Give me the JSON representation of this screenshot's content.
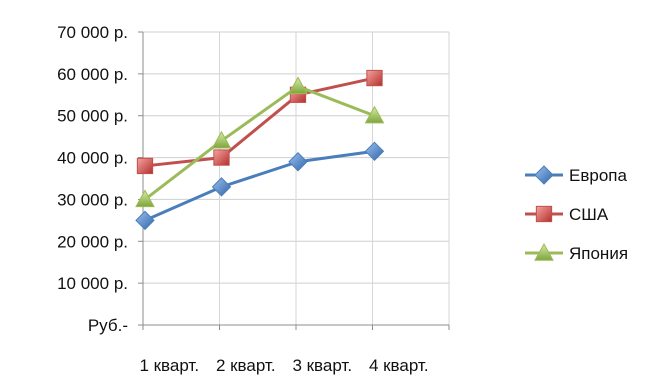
{
  "chart_data": {
    "type": "line",
    "title": "",
    "xlabel": "",
    "ylabel": "",
    "categories": [
      "1 кварт.",
      "2 кварт.",
      "3 кварт.",
      "4 кварт."
    ],
    "ylim": [
      0,
      70000
    ],
    "y_ticks": [
      0,
      10000,
      20000,
      30000,
      40000,
      50000,
      60000,
      70000
    ],
    "y_tick_labels": [
      "Руб.-",
      "10 000 р.",
      "20 000 р.",
      "30 000 р.",
      "40 000 р.",
      "50 000 р.",
      "60 000 р.",
      "70 000 р."
    ],
    "grid": true,
    "legend_position": "right",
    "series": [
      {
        "name": "Европа",
        "values": [
          25000,
          33000,
          39000,
          41500
        ],
        "color": "#4a7ebb",
        "marker": "diamond"
      },
      {
        "name": "США",
        "values": [
          38000,
          40000,
          55000,
          59000
        ],
        "color": "#c0504d",
        "marker": "square"
      },
      {
        "name": "Япония",
        "values": [
          30000,
          44000,
          57000,
          50000
        ],
        "color": "#9bbb59",
        "marker": "triangle"
      }
    ]
  }
}
